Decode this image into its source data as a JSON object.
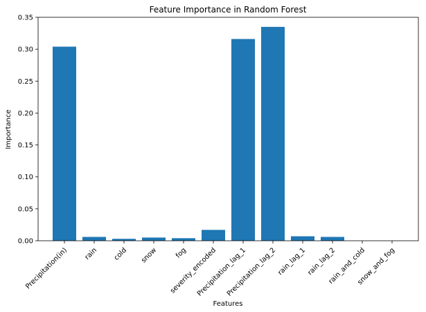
{
  "chart_data": {
    "type": "bar",
    "title": "Feature Importance in Random Forest",
    "xlabel": "Features",
    "ylabel": "Importance",
    "categories": [
      "Precipitation(in)",
      "rain",
      "cold",
      "snow",
      "fog",
      "severity_encoded",
      "Precipitation_lag_1",
      "Precipitation_lag_2",
      "rain_lag_1",
      "rain_lag_2",
      "rain_and_cold",
      "snow_and_fog"
    ],
    "values": [
      0.304,
      0.006,
      0.003,
      0.005,
      0.004,
      0.017,
      0.316,
      0.335,
      0.007,
      0.006,
      0.0,
      0.0
    ],
    "ylim": [
      0,
      0.35
    ],
    "yticks": [
      0.0,
      0.05,
      0.1,
      0.15,
      0.2,
      0.25,
      0.3,
      0.35
    ],
    "ytick_labels": [
      "0.00",
      "0.05",
      "0.10",
      "0.15",
      "0.20",
      "0.25",
      "0.30",
      "0.35"
    ],
    "bar_color": "#1f77b4",
    "grid": false,
    "legend": "none"
  }
}
